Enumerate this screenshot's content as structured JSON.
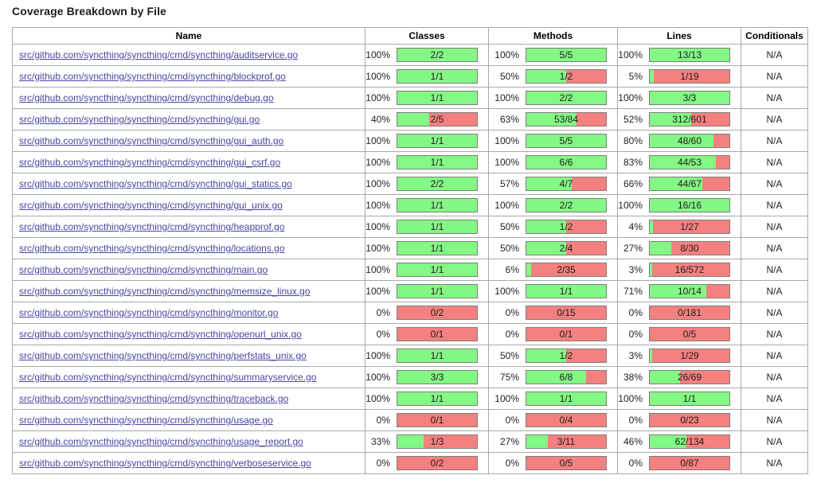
{
  "page": {
    "title": "Coverage Breakdown by File"
  },
  "colors": {
    "covered_green": "#84f884",
    "uncovered_red": "#f58080",
    "link": "#4745a0"
  },
  "table": {
    "columns": [
      "Name",
      "Classes",
      "Methods",
      "Lines",
      "Conditionals"
    ],
    "rows": [
      {
        "name": "src/github.com/syncthing/syncthing/cmd/syncthing/auditservice.go",
        "classes": {
          "pct": "100%",
          "ratio": "2/2"
        },
        "methods": {
          "pct": "100%",
          "ratio": "5/5"
        },
        "lines": {
          "pct": "100%",
          "ratio": "13/13"
        },
        "conditionals": "N/A"
      },
      {
        "name": "src/github.com/syncthing/syncthing/cmd/syncthing/blockprof.go",
        "classes": {
          "pct": "100%",
          "ratio": "1/1"
        },
        "methods": {
          "pct": "50%",
          "ratio": "1/2"
        },
        "lines": {
          "pct": "5%",
          "ratio": "1/19"
        },
        "conditionals": "N/A"
      },
      {
        "name": "src/github.com/syncthing/syncthing/cmd/syncthing/debug.go",
        "classes": {
          "pct": "100%",
          "ratio": "1/1"
        },
        "methods": {
          "pct": "100%",
          "ratio": "2/2"
        },
        "lines": {
          "pct": "100%",
          "ratio": "3/3"
        },
        "conditionals": "N/A"
      },
      {
        "name": "src/github.com/syncthing/syncthing/cmd/syncthing/gui.go",
        "classes": {
          "pct": "40%",
          "ratio": "2/5"
        },
        "methods": {
          "pct": "63%",
          "ratio": "53/84"
        },
        "lines": {
          "pct": "52%",
          "ratio": "312/601"
        },
        "conditionals": "N/A"
      },
      {
        "name": "src/github.com/syncthing/syncthing/cmd/syncthing/gui_auth.go",
        "classes": {
          "pct": "100%",
          "ratio": "1/1"
        },
        "methods": {
          "pct": "100%",
          "ratio": "5/5"
        },
        "lines": {
          "pct": "80%",
          "ratio": "48/60"
        },
        "conditionals": "N/A"
      },
      {
        "name": "src/github.com/syncthing/syncthing/cmd/syncthing/gui_csrf.go",
        "classes": {
          "pct": "100%",
          "ratio": "1/1"
        },
        "methods": {
          "pct": "100%",
          "ratio": "6/6"
        },
        "lines": {
          "pct": "83%",
          "ratio": "44/53"
        },
        "conditionals": "N/A"
      },
      {
        "name": "src/github.com/syncthing/syncthing/cmd/syncthing/gui_statics.go",
        "classes": {
          "pct": "100%",
          "ratio": "2/2"
        },
        "methods": {
          "pct": "57%",
          "ratio": "4/7"
        },
        "lines": {
          "pct": "66%",
          "ratio": "44/67"
        },
        "conditionals": "N/A"
      },
      {
        "name": "src/github.com/syncthing/syncthing/cmd/syncthing/gui_unix.go",
        "classes": {
          "pct": "100%",
          "ratio": "1/1"
        },
        "methods": {
          "pct": "100%",
          "ratio": "2/2"
        },
        "lines": {
          "pct": "100%",
          "ratio": "16/16"
        },
        "conditionals": "N/A"
      },
      {
        "name": "src/github.com/syncthing/syncthing/cmd/syncthing/heapprof.go",
        "classes": {
          "pct": "100%",
          "ratio": "1/1"
        },
        "methods": {
          "pct": "50%",
          "ratio": "1/2"
        },
        "lines": {
          "pct": "4%",
          "ratio": "1/27"
        },
        "conditionals": "N/A"
      },
      {
        "name": "src/github.com/syncthing/syncthing/cmd/syncthing/locations.go",
        "classes": {
          "pct": "100%",
          "ratio": "1/1"
        },
        "methods": {
          "pct": "50%",
          "ratio": "2/4"
        },
        "lines": {
          "pct": "27%",
          "ratio": "8/30"
        },
        "conditionals": "N/A"
      },
      {
        "name": "src/github.com/syncthing/syncthing/cmd/syncthing/main.go",
        "classes": {
          "pct": "100%",
          "ratio": "1/1"
        },
        "methods": {
          "pct": "6%",
          "ratio": "2/35"
        },
        "lines": {
          "pct": "3%",
          "ratio": "16/572"
        },
        "conditionals": "N/A"
      },
      {
        "name": "src/github.com/syncthing/syncthing/cmd/syncthing/memsize_linux.go",
        "classes": {
          "pct": "100%",
          "ratio": "1/1"
        },
        "methods": {
          "pct": "100%",
          "ratio": "1/1"
        },
        "lines": {
          "pct": "71%",
          "ratio": "10/14"
        },
        "conditionals": "N/A"
      },
      {
        "name": "src/github.com/syncthing/syncthing/cmd/syncthing/monitor.go",
        "classes": {
          "pct": "0%",
          "ratio": "0/2"
        },
        "methods": {
          "pct": "0%",
          "ratio": "0/15"
        },
        "lines": {
          "pct": "0%",
          "ratio": "0/181"
        },
        "conditionals": "N/A"
      },
      {
        "name": "src/github.com/syncthing/syncthing/cmd/syncthing/openurl_unix.go",
        "classes": {
          "pct": "0%",
          "ratio": "0/1"
        },
        "methods": {
          "pct": "0%",
          "ratio": "0/1"
        },
        "lines": {
          "pct": "0%",
          "ratio": "0/5"
        },
        "conditionals": "N/A"
      },
      {
        "name": "src/github.com/syncthing/syncthing/cmd/syncthing/perfstats_unix.go",
        "classes": {
          "pct": "100%",
          "ratio": "1/1"
        },
        "methods": {
          "pct": "50%",
          "ratio": "1/2"
        },
        "lines": {
          "pct": "3%",
          "ratio": "1/29"
        },
        "conditionals": "N/A"
      },
      {
        "name": "src/github.com/syncthing/syncthing/cmd/syncthing/summaryservice.go",
        "classes": {
          "pct": "100%",
          "ratio": "3/3"
        },
        "methods": {
          "pct": "75%",
          "ratio": "6/8"
        },
        "lines": {
          "pct": "38%",
          "ratio": "26/69"
        },
        "conditionals": "N/A"
      },
      {
        "name": "src/github.com/syncthing/syncthing/cmd/syncthing/traceback.go",
        "classes": {
          "pct": "100%",
          "ratio": "1/1"
        },
        "methods": {
          "pct": "100%",
          "ratio": "1/1"
        },
        "lines": {
          "pct": "100%",
          "ratio": "1/1"
        },
        "conditionals": "N/A"
      },
      {
        "name": "src/github.com/syncthing/syncthing/cmd/syncthing/usage.go",
        "classes": {
          "pct": "0%",
          "ratio": "0/1"
        },
        "methods": {
          "pct": "0%",
          "ratio": "0/4"
        },
        "lines": {
          "pct": "0%",
          "ratio": "0/23"
        },
        "conditionals": "N/A"
      },
      {
        "name": "src/github.com/syncthing/syncthing/cmd/syncthing/usage_report.go",
        "classes": {
          "pct": "33%",
          "ratio": "1/3"
        },
        "methods": {
          "pct": "27%",
          "ratio": "3/11"
        },
        "lines": {
          "pct": "46%",
          "ratio": "62/134"
        },
        "conditionals": "N/A"
      },
      {
        "name": "src/github.com/syncthing/syncthing/cmd/syncthing/verboseservice.go",
        "classes": {
          "pct": "0%",
          "ratio": "0/2"
        },
        "methods": {
          "pct": "0%",
          "ratio": "0/5"
        },
        "lines": {
          "pct": "0%",
          "ratio": "0/87"
        },
        "conditionals": "N/A"
      }
    ]
  }
}
